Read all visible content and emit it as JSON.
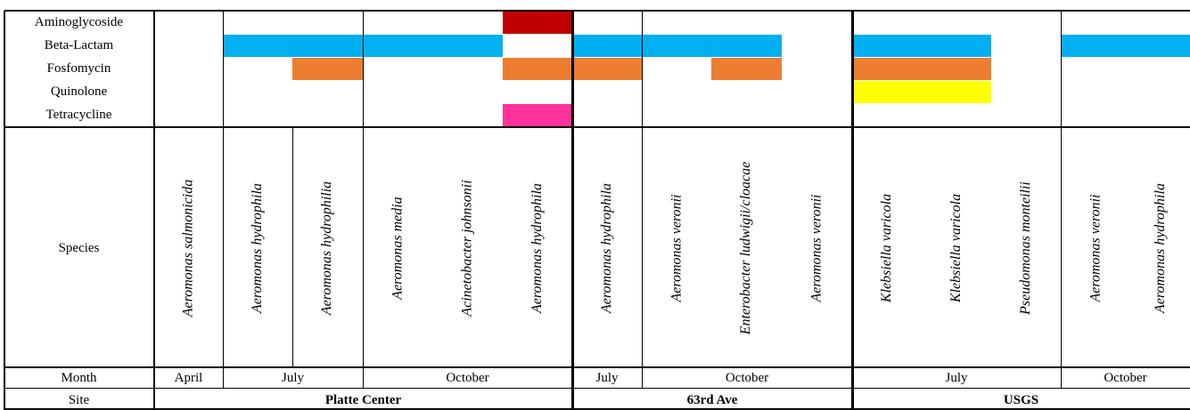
{
  "colors": {
    "Aminoglycoside": "#c00000",
    "Beta-Lactam": "#00b0f0",
    "Fosfomycin": "#ed7d31",
    "Quinolone": "#ffff00",
    "Tetracycline": "#ff3399"
  },
  "antibiotic_classes": [
    "Aminoglycoside",
    "Beta-Lactam",
    "Fosfomycin",
    "Quinolone",
    "Tetracycline"
  ],
  "species_row_label": "Species",
  "month_row_label": "Month",
  "site_row_label": "Site",
  "species": [
    "Aeromonas salmonicida",
    "Aeromonas hydrophila",
    "Aeromonas hydrophilia",
    "Aeromonas media",
    "Acinetobacter johnsonii",
    "Aeromonas hydrophila",
    "Aeromonas hydrophila",
    "Aeromonas veronii",
    "Enterobacter ludwigii/cloacae",
    "Aeromonas veronii",
    "Klebsiella varicola",
    "Klebsiella varicola",
    "Pseudomonas monteilii",
    "Aeromonas veronii",
    "Aeromonas hydrophila"
  ],
  "resistance": [
    [],
    [
      "Beta-Lactam"
    ],
    [
      "Beta-Lactam",
      "Fosfomycin"
    ],
    [
      "Beta-Lactam"
    ],
    [
      "Beta-Lactam"
    ],
    [
      "Aminoglycoside",
      "Fosfomycin",
      "Tetracycline"
    ],
    [
      "Beta-Lactam",
      "Fosfomycin"
    ],
    [
      "Beta-Lactam"
    ],
    [
      "Beta-Lactam",
      "Fosfomycin"
    ],
    [],
    [
      "Beta-Lactam",
      "Fosfomycin",
      "Quinolone"
    ],
    [
      "Beta-Lactam",
      "Fosfomycin",
      "Quinolone"
    ],
    [],
    [
      "Beta-Lactam"
    ],
    [
      "Beta-Lactam"
    ]
  ],
  "months": [
    {
      "label": "April",
      "span": 1
    },
    {
      "label": "July",
      "span": 2
    },
    {
      "label": "October",
      "span": 3
    },
    {
      "label": "July",
      "span": 1
    },
    {
      "label": "October",
      "span": 3
    },
    {
      "label": "July",
      "span": 3
    },
    {
      "label": "October",
      "span": 2
    }
  ],
  "sites": [
    {
      "label": "Platte Center",
      "span": 6
    },
    {
      "label": "63rd Ave",
      "span": 4
    },
    {
      "label": "USGS",
      "span": 5
    }
  ]
}
